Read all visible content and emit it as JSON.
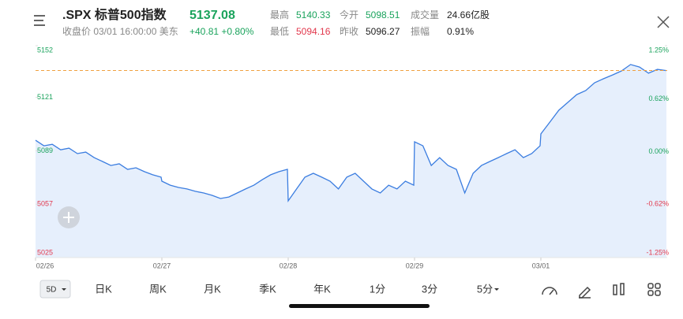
{
  "header": {
    "symbol": ".SPX 标普500指数",
    "price": "5137.08",
    "status": "收盘价 03/01 16:00:00 美东",
    "change": "+40.81 +0.80%",
    "stats": [
      {
        "label": "最高",
        "value": "5140.33"
      },
      {
        "label": "今开",
        "value": "5098.51"
      },
      {
        "label": "成交量",
        "value": "24.66亿股"
      },
      {
        "label": "最低",
        "value": "5094.16"
      },
      {
        "label": "昨收",
        "value": "5096.27"
      },
      {
        "label": "振幅",
        "value": "0.91%"
      }
    ]
  },
  "chart_data": {
    "type": "line",
    "color": "#3b7de0",
    "fill": "#e6effc",
    "up_color": "#1aa35c",
    "down_color": "#e2384d",
    "last_line_color": "#f0a040",
    "sessions": [
      {
        "date": "02/26",
        "values": [
          5095.3,
          5092.0,
          5092.9,
          5089.6,
          5090.6,
          5087.3,
          5088.2,
          5084.9,
          5082.6,
          5080.2,
          5081.2,
          5077.9,
          5078.8,
          5076.5,
          5074.6,
          5073.2
        ]
      },
      {
        "date": "02/27",
        "values": [
          5070.8,
          5068.4,
          5067.0,
          5066.1,
          5064.7,
          5063.7,
          5062.3,
          5060.4,
          5061.3,
          5063.7,
          5066.1,
          5068.4,
          5071.7,
          5074.6,
          5076.5,
          5077.9
        ]
      },
      {
        "date": "02/28",
        "values": [
          5059.0,
          5066.1,
          5073.2,
          5075.5,
          5073.2,
          5070.8,
          5066.1,
          5073.2,
          5075.5,
          5070.8,
          5066.1,
          5063.7,
          5068.4,
          5066.1,
          5070.8,
          5068.4
        ]
      },
      {
        "date": "02/29",
        "values": [
          5094.4,
          5092.0,
          5080.2,
          5084.9,
          5080.2,
          5077.9,
          5063.7,
          5075.5,
          5080.2,
          5082.6,
          5084.9,
          5087.3,
          5089.6,
          5084.9,
          5087.3,
          5092.0
        ]
      },
      {
        "date": "03/01",
        "values": [
          5099.1,
          5106.2,
          5113.3,
          5118.0,
          5122.7,
          5125.1,
          5129.8,
          5132.2,
          5134.5,
          5136.9,
          5140.7,
          5139.2,
          5135.5,
          5137.8,
          5137.1
        ]
      }
    ],
    "ylim": [
      5025,
      5152
    ],
    "yticks": [
      5025,
      5057,
      5089,
      5121,
      5152
    ],
    "y2lim": [
      -1.25,
      1.25
    ],
    "y2ticks": [
      {
        "value": -1.25,
        "label": "-1.25%"
      },
      {
        "value": -0.62,
        "label": "-0.62%"
      },
      {
        "value": 0,
        "label": "0.00%"
      },
      {
        "value": 0.62,
        "label": "0.62%"
      },
      {
        "value": 1.25,
        "label": "1.25%"
      }
    ]
  },
  "tabs": [
    "5D",
    "日K",
    "周K",
    "月K",
    "季K",
    "年K",
    "1分",
    "3分",
    "5分"
  ]
}
